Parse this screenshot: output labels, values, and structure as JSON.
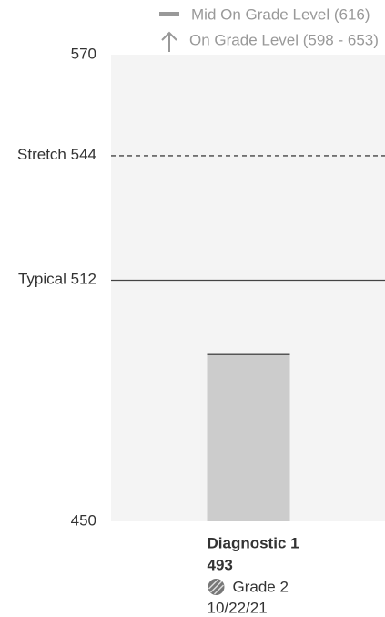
{
  "chart_data": {
    "type": "bar",
    "legend": [
      "Mid On Grade Level (616)",
      "On Grade Level (598 - 653)"
    ],
    "categories": [
      "Diagnostic 1"
    ],
    "values": [
      493
    ],
    "color": "#cccccc",
    "bar_details": [
      {
        "grade": "Grade 2",
        "date": "10/22/21"
      }
    ],
    "ylim": [
      450,
      570
    ],
    "yticks": [
      450,
      570
    ],
    "grid": false,
    "reference_lines": [
      {
        "label": "Stretch",
        "value": 544,
        "style": "dashed"
      },
      {
        "label": "Typical",
        "value": 512,
        "style": "solid"
      }
    ]
  }
}
